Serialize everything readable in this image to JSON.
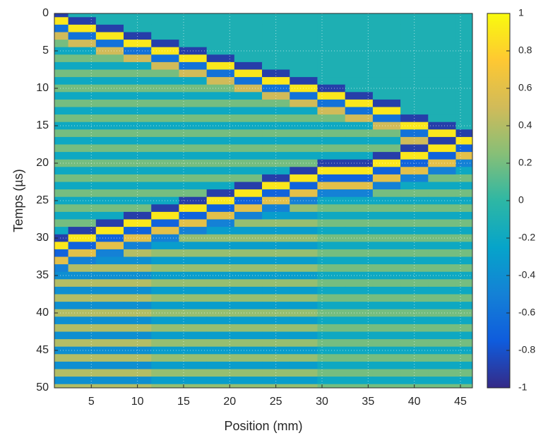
{
  "chart_data": {
    "type": "heatmap",
    "xlabel": "Position (mm)",
    "ylabel": "Temps (µs)",
    "x": [
      1,
      4,
      7,
      10,
      13,
      16,
      19,
      22,
      25,
      28,
      31,
      34,
      37,
      40,
      43,
      46
    ],
    "y": [
      0,
      1,
      2,
      3,
      4,
      5,
      6,
      7,
      8,
      9,
      10,
      11,
      12,
      13,
      14,
      15,
      16,
      17,
      18,
      19,
      20,
      21,
      22,
      23,
      24,
      25,
      26,
      27,
      28,
      29,
      30,
      31,
      32,
      33,
      34,
      35,
      36,
      37,
      38,
      39,
      40,
      41,
      42,
      43,
      44,
      45,
      46,
      47,
      48,
      49,
      50
    ],
    "z": [
      [
        -0.9,
        -0.1,
        -0.1,
        -0.1,
        -0.1,
        -0.1,
        -0.1,
        -0.1,
        -0.1,
        -0.1,
        -0.1,
        -0.1,
        -0.1,
        -0.1,
        -0.1,
        -0.1
      ],
      [
        0.9,
        -0.9,
        -0.1,
        -0.1,
        -0.1,
        -0.1,
        -0.1,
        -0.1,
        -0.1,
        -0.1,
        -0.1,
        -0.1,
        -0.1,
        -0.1,
        -0.1,
        -0.1
      ],
      [
        -0.6,
        0.9,
        -0.9,
        -0.1,
        -0.1,
        -0.1,
        -0.1,
        -0.1,
        -0.1,
        -0.1,
        -0.1,
        -0.1,
        -0.1,
        -0.1,
        -0.1,
        -0.1
      ],
      [
        0.5,
        -0.6,
        0.9,
        -0.9,
        -0.1,
        -0.1,
        -0.1,
        -0.1,
        -0.1,
        -0.1,
        -0.1,
        -0.1,
        -0.1,
        -0.1,
        -0.1,
        -0.1
      ],
      [
        0.2,
        0.5,
        -0.6,
        0.9,
        -0.9,
        -0.1,
        -0.1,
        -0.1,
        -0.1,
        -0.1,
        -0.1,
        -0.1,
        -0.1,
        -0.1,
        -0.1,
        -0.1
      ],
      [
        -0.2,
        -0.2,
        0.5,
        -0.6,
        0.9,
        -0.9,
        -0.1,
        -0.1,
        -0.1,
        -0.1,
        -0.1,
        -0.1,
        -0.1,
        -0.1,
        -0.1,
        -0.1
      ],
      [
        0.2,
        0.2,
        0.2,
        0.5,
        -0.6,
        0.9,
        -0.9,
        -0.1,
        -0.1,
        -0.1,
        -0.1,
        -0.1,
        -0.1,
        -0.1,
        -0.1,
        -0.1
      ],
      [
        -0.2,
        -0.2,
        -0.2,
        -0.2,
        0.5,
        -0.6,
        0.9,
        -0.9,
        -0.1,
        -0.1,
        -0.1,
        -0.1,
        -0.1,
        -0.1,
        -0.1,
        -0.1
      ],
      [
        0.2,
        0.2,
        0.2,
        0.2,
        0.2,
        0.5,
        -0.6,
        0.9,
        -0.9,
        -0.1,
        -0.1,
        -0.1,
        -0.1,
        -0.1,
        -0.1,
        -0.1
      ],
      [
        -0.2,
        -0.2,
        -0.2,
        -0.2,
        -0.2,
        -0.2,
        0.5,
        -0.6,
        0.9,
        -0.9,
        -0.1,
        -0.1,
        -0.1,
        -0.1,
        -0.1,
        -0.1
      ],
      [
        0.2,
        0.2,
        0.2,
        0.2,
        0.2,
        0.2,
        0.2,
        0.5,
        -0.6,
        0.9,
        -0.9,
        -0.1,
        -0.1,
        -0.1,
        -0.1,
        -0.1
      ],
      [
        -0.2,
        -0.2,
        -0.2,
        -0.2,
        -0.2,
        -0.2,
        -0.2,
        -0.2,
        0.5,
        -0.6,
        0.9,
        -0.9,
        -0.1,
        -0.1,
        -0.1,
        -0.1
      ],
      [
        0.2,
        0.2,
        0.2,
        0.2,
        0.2,
        0.2,
        0.2,
        0.2,
        0.2,
        0.5,
        -0.6,
        0.9,
        -0.9,
        -0.1,
        -0.1,
        -0.1
      ],
      [
        -0.2,
        -0.2,
        -0.2,
        -0.2,
        -0.2,
        -0.2,
        -0.2,
        -0.2,
        -0.2,
        -0.2,
        0.5,
        -0.6,
        0.9,
        -0.1,
        -0.1,
        -0.1
      ],
      [
        0.2,
        0.2,
        0.2,
        0.2,
        0.2,
        0.2,
        0.2,
        0.2,
        0.2,
        0.2,
        0.2,
        0.5,
        -0.6,
        -0.9,
        -0.1,
        -0.1
      ],
      [
        -0.2,
        -0.2,
        -0.2,
        -0.2,
        -0.2,
        -0.2,
        -0.2,
        -0.2,
        -0.2,
        -0.2,
        -0.2,
        -0.2,
        0.5,
        0.9,
        -0.9,
        -0.1
      ],
      [
        0.2,
        0.2,
        0.2,
        0.2,
        0.2,
        0.2,
        0.2,
        0.2,
        0.2,
        0.2,
        0.2,
        0.2,
        0.2,
        -0.6,
        0.9,
        -0.9
      ],
      [
        -0.2,
        -0.2,
        -0.2,
        -0.2,
        -0.2,
        -0.2,
        -0.2,
        -0.2,
        -0.2,
        -0.2,
        -0.2,
        -0.2,
        -0.2,
        0.5,
        -0.9,
        0.9
      ],
      [
        0.2,
        0.2,
        0.2,
        0.2,
        0.2,
        0.2,
        0.2,
        0.2,
        0.2,
        0.2,
        0.2,
        0.2,
        0.2,
        -0.9,
        0.9,
        -0.7
      ],
      [
        -0.2,
        -0.2,
        -0.2,
        -0.2,
        -0.2,
        -0.2,
        -0.2,
        -0.2,
        -0.2,
        -0.2,
        -0.2,
        -0.2,
        -0.9,
        0.9,
        -0.7,
        0.6
      ],
      [
        0.2,
        0.2,
        0.2,
        0.2,
        0.2,
        0.2,
        0.2,
        0.2,
        0.2,
        0.2,
        -0.9,
        -0.9,
        0.9,
        -0.7,
        0.6,
        -0.5
      ],
      [
        -0.2,
        -0.2,
        -0.2,
        -0.2,
        -0.2,
        -0.2,
        -0.2,
        -0.2,
        -0.2,
        -0.9,
        0.9,
        0.9,
        -0.7,
        0.6,
        -0.5,
        -0.2
      ],
      [
        0.2,
        0.2,
        0.2,
        0.2,
        0.2,
        0.2,
        0.2,
        0.2,
        -0.9,
        0.9,
        -0.7,
        -0.7,
        0.6,
        -0.5,
        0.2,
        0.2
      ],
      [
        -0.2,
        -0.2,
        -0.2,
        -0.2,
        -0.2,
        -0.2,
        -0.2,
        -0.9,
        0.9,
        -0.7,
        0.6,
        0.6,
        -0.5,
        -0.2,
        -0.2,
        -0.2
      ],
      [
        0.2,
        0.2,
        0.2,
        0.2,
        0.2,
        0.2,
        -0.9,
        0.9,
        -0.7,
        0.6,
        -0.5,
        -0.5,
        0.2,
        0.2,
        0.2,
        0.2
      ],
      [
        -0.2,
        -0.2,
        -0.2,
        -0.2,
        -0.2,
        -0.9,
        0.9,
        -0.7,
        0.6,
        -0.5,
        -0.2,
        -0.2,
        -0.2,
        -0.2,
        -0.2,
        -0.2
      ],
      [
        0.2,
        0.2,
        0.2,
        0.2,
        -0.9,
        0.9,
        -0.7,
        0.6,
        -0.5,
        0.3,
        0.2,
        0.2,
        0.2,
        0.2,
        0.2,
        0.2
      ],
      [
        -0.2,
        -0.2,
        -0.2,
        -0.9,
        0.9,
        -0.7,
        0.6,
        -0.5,
        -0.3,
        -0.3,
        -0.2,
        -0.2,
        -0.2,
        -0.2,
        -0.2,
        -0.2
      ],
      [
        0.2,
        0.2,
        -0.9,
        0.9,
        -0.7,
        0.6,
        -0.5,
        0.3,
        0.3,
        0.3,
        0.2,
        0.2,
        0.2,
        0.2,
        0.2,
        0.2
      ],
      [
        -0.2,
        -0.9,
        0.9,
        -0.7,
        0.6,
        -0.5,
        -0.3,
        -0.3,
        -0.3,
        -0.3,
        -0.2,
        -0.2,
        -0.2,
        -0.2,
        -0.2,
        -0.2
      ],
      [
        -0.9,
        0.9,
        -0.7,
        0.6,
        -0.5,
        0.3,
        0.3,
        0.3,
        0.3,
        0.3,
        0.2,
        0.2,
        0.2,
        0.2,
        0.2,
        0.2
      ],
      [
        0.9,
        -0.7,
        0.6,
        -0.5,
        -0.3,
        -0.3,
        -0.3,
        -0.3,
        -0.3,
        -0.3,
        -0.2,
        -0.2,
        -0.2,
        -0.2,
        -0.2,
        -0.2
      ],
      [
        -0.7,
        0.6,
        -0.5,
        0.4,
        0.3,
        0.3,
        0.3,
        0.3,
        0.3,
        0.3,
        0.2,
        0.2,
        0.2,
        0.2,
        0.2,
        0.2
      ],
      [
        0.6,
        -0.5,
        -0.4,
        -0.4,
        -0.3,
        -0.3,
        -0.3,
        -0.3,
        -0.3,
        -0.3,
        -0.2,
        -0.2,
        -0.2,
        -0.2,
        -0.2,
        -0.2
      ],
      [
        -0.5,
        0.4,
        0.4,
        0.4,
        0.3,
        0.3,
        0.3,
        0.3,
        0.3,
        0.3,
        0.2,
        0.2,
        0.2,
        0.2,
        0.2,
        0.2
      ],
      [
        -0.4,
        -0.4,
        -0.4,
        -0.4,
        -0.3,
        -0.3,
        -0.3,
        -0.3,
        -0.3,
        -0.3,
        -0.2,
        -0.2,
        -0.2,
        -0.2,
        -0.2,
        -0.2
      ],
      [
        0.4,
        0.4,
        0.4,
        0.4,
        0.3,
        0.3,
        0.3,
        0.3,
        0.3,
        0.3,
        0.2,
        0.2,
        0.2,
        0.2,
        0.2,
        0.2
      ],
      [
        -0.4,
        -0.4,
        -0.4,
        -0.4,
        -0.3,
        -0.3,
        -0.3,
        -0.3,
        -0.3,
        -0.3,
        -0.2,
        -0.2,
        -0.2,
        -0.2,
        -0.2,
        -0.2
      ],
      [
        0.4,
        0.4,
        0.4,
        0.4,
        0.3,
        0.3,
        0.3,
        0.3,
        0.3,
        0.3,
        0.2,
        0.2,
        0.2,
        0.2,
        0.2,
        0.2
      ],
      [
        -0.4,
        -0.4,
        -0.4,
        -0.4,
        -0.3,
        -0.3,
        -0.3,
        -0.3,
        -0.3,
        -0.3,
        -0.2,
        -0.2,
        -0.2,
        -0.2,
        -0.2,
        -0.2
      ],
      [
        0.4,
        0.4,
        0.4,
        0.4,
        0.3,
        0.3,
        0.3,
        0.3,
        0.3,
        0.3,
        0.2,
        0.2,
        0.2,
        0.2,
        0.2,
        0.2
      ],
      [
        -0.4,
        -0.4,
        -0.4,
        -0.4,
        -0.3,
        -0.3,
        -0.3,
        -0.3,
        -0.3,
        -0.3,
        -0.2,
        -0.2,
        -0.2,
        -0.2,
        -0.2,
        -0.2
      ],
      [
        0.4,
        0.4,
        0.4,
        0.4,
        0.3,
        0.3,
        0.3,
        0.3,
        0.3,
        0.3,
        0.2,
        0.2,
        0.2,
        0.2,
        0.2,
        0.2
      ],
      [
        -0.4,
        -0.4,
        -0.4,
        -0.4,
        -0.3,
        -0.3,
        -0.3,
        -0.3,
        -0.3,
        -0.3,
        -0.2,
        -0.2,
        -0.2,
        -0.2,
        -0.2,
        -0.2
      ],
      [
        0.4,
        0.4,
        0.4,
        0.4,
        0.3,
        0.3,
        0.3,
        0.3,
        0.3,
        0.3,
        0.2,
        0.2,
        0.2,
        0.2,
        0.2,
        0.2
      ],
      [
        -0.4,
        -0.4,
        -0.4,
        -0.4,
        -0.3,
        -0.3,
        -0.3,
        -0.3,
        -0.3,
        -0.3,
        -0.2,
        -0.2,
        -0.2,
        -0.2,
        -0.2,
        -0.2
      ],
      [
        0.4,
        0.4,
        0.4,
        0.4,
        0.3,
        0.3,
        0.3,
        0.3,
        0.3,
        0.3,
        0.2,
        0.2,
        0.2,
        0.2,
        0.2,
        0.2
      ],
      [
        -0.4,
        -0.4,
        -0.4,
        -0.4,
        -0.3,
        -0.3,
        -0.3,
        -0.3,
        -0.3,
        -0.3,
        -0.2,
        -0.2,
        -0.2,
        -0.2,
        -0.2,
        -0.2
      ],
      [
        0.4,
        0.4,
        0.4,
        0.4,
        0.3,
        0.3,
        0.3,
        0.3,
        0.3,
        0.3,
        0.2,
        0.2,
        0.2,
        0.2,
        0.2,
        0.2
      ],
      [
        -0.4,
        -0.4,
        -0.4,
        -0.4,
        -0.3,
        -0.3,
        -0.3,
        -0.3,
        -0.3,
        -0.3,
        -0.2,
        -0.2,
        -0.2,
        -0.2,
        -0.2,
        -0.2
      ],
      [
        0.4,
        0.4,
        0.4,
        0.4,
        0.3,
        0.3,
        0.3,
        0.3,
        0.3,
        0.3,
        0.2,
        0.2,
        0.2,
        0.2,
        0.2,
        0.2
      ]
    ],
    "xlim": [
      1,
      46.3
    ],
    "ylim": [
      0,
      50
    ],
    "y_reversed": true,
    "xticks": [
      5,
      10,
      15,
      20,
      25,
      30,
      35,
      40,
      45
    ],
    "yticks": [
      0,
      5,
      10,
      15,
      20,
      25,
      30,
      35,
      40,
      45,
      50
    ],
    "grid": true,
    "clim": [
      -1,
      1
    ],
    "cticks": [
      -1,
      -0.8,
      -0.6,
      -0.4,
      -0.2,
      0,
      0.2,
      0.4,
      0.6,
      0.8,
      1
    ],
    "colormap": [
      "#352a87",
      "#0f5cdd",
      "#1481d6",
      "#06a4ca",
      "#2eb7a4",
      "#87bf77",
      "#d1bb59",
      "#fec832",
      "#f9fb0e"
    ]
  }
}
